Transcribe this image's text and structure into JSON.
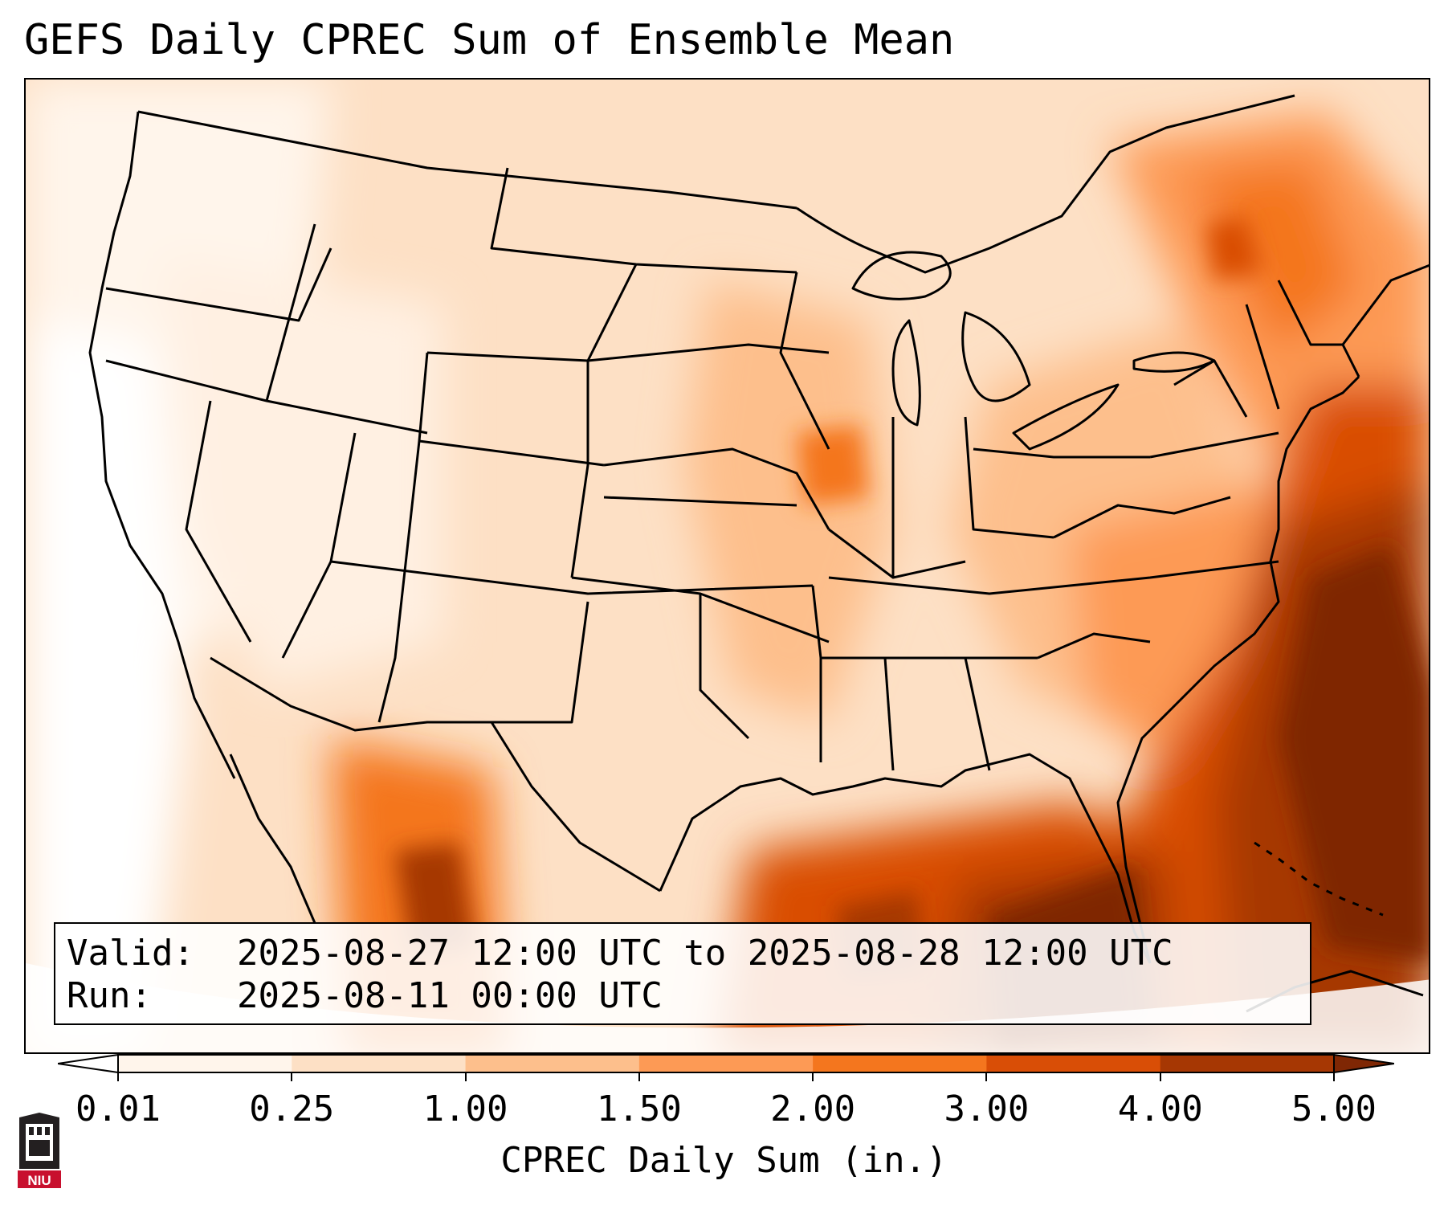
{
  "title": "GEFS Daily CPREC Sum of Ensemble Mean",
  "map": {
    "region": "Continental United States",
    "palette": [
      "#fff5eb",
      "#fde0c5",
      "#fdbf8c",
      "#fd9a55",
      "#f4761e",
      "#d94e06",
      "#a63703",
      "#7f2704"
    ]
  },
  "info": {
    "valid_label": "Valid:",
    "valid_text": "2025-08-27 12:00 UTC to 2025-08-28 12:00 UTC",
    "run_label": "Run:",
    "run_text": "2025-08-11 00:00 UTC"
  },
  "colorbar": {
    "ticks": [
      "0.01",
      "0.25",
      "1.00",
      "1.50",
      "2.00",
      "3.00",
      "4.00",
      "5.00"
    ],
    "label": "CPREC Daily Sum (in.)",
    "colors": [
      "#fff5eb",
      "#fde0c5",
      "#fdbf8c",
      "#fd9a55",
      "#f4761e",
      "#d94e06",
      "#a63703"
    ],
    "under_color": "#ffffff",
    "over_color": "#7f2704"
  },
  "logo": {
    "text": "NIU",
    "color": "#c8102e"
  }
}
